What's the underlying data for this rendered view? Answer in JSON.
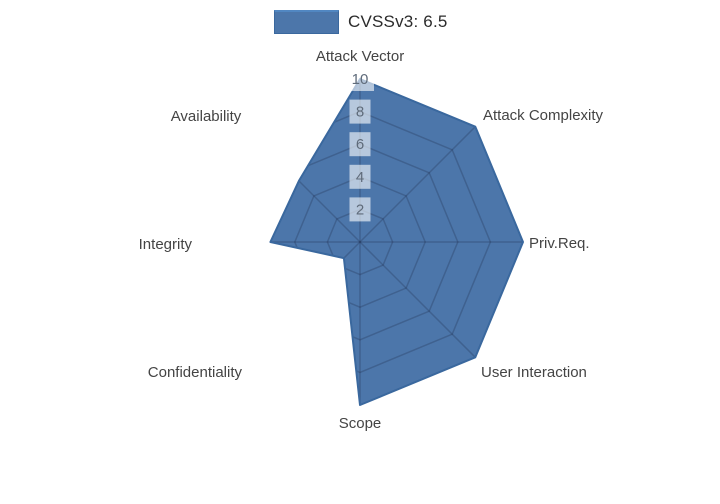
{
  "legend": {
    "label": "CVSSv3: 6.5"
  },
  "colors": {
    "fill": "#4C76AA",
    "line": "#3A689E",
    "legend_top_line": "#5187C2",
    "grid": "rgba(25,35,65,0.25)",
    "tick_text": "#5F6B7A",
    "tick_box_bg": "rgba(255,255,255,0.6)",
    "axis_label_text": "#444444",
    "legend_text": "#2B2B2B"
  },
  "chart_data": {
    "type": "radar",
    "title": "CVSSv3: 6.5",
    "categories": [
      "Attack Vector",
      "Attack Complexity",
      "Priv.Req.",
      "User Interaction",
      "Scope",
      "Confidentiality",
      "Integrity",
      "Availability"
    ],
    "series": [
      {
        "name": "CVSSv3: 6.5",
        "values": [
          10,
          10,
          10,
          10,
          10,
          1.4,
          5.5,
          5.3
        ]
      }
    ],
    "radial_ticks": [
      2,
      4,
      6,
      8,
      10
    ],
    "radial_range": [
      0,
      10
    ],
    "start_angle_deg": 90,
    "direction": "clockwise",
    "grid": true,
    "grid_visible_only_inside_fill": true,
    "legend_position": "top-center"
  }
}
